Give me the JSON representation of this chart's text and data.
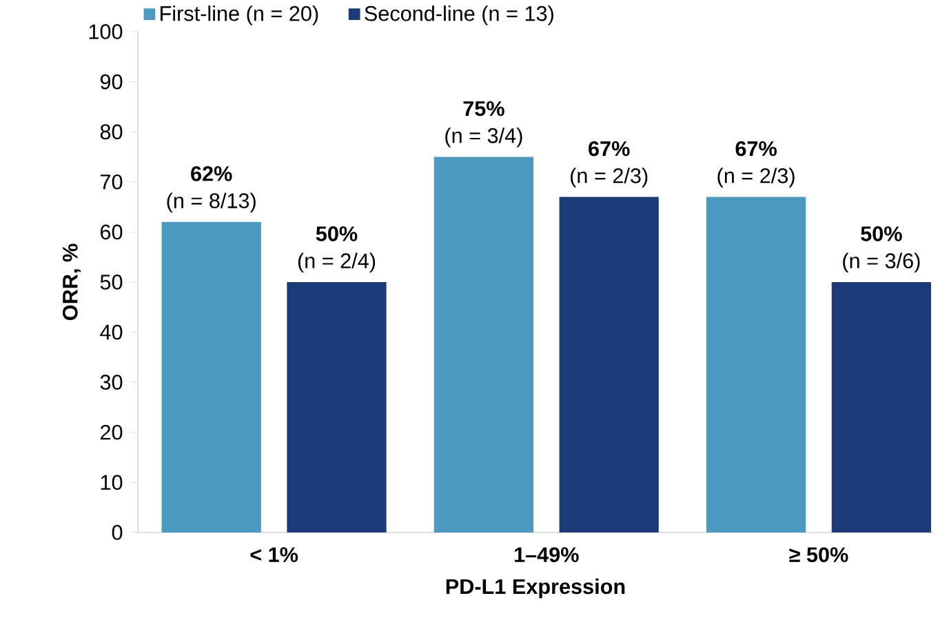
{
  "chart_data": {
    "type": "bar",
    "xlabel": "PD-L1 Expression",
    "ylabel": "ORR, %",
    "categories": [
      "< 1%",
      "1–49%",
      "≥ 50%"
    ],
    "series": [
      {
        "name": "First-line (n = 20)",
        "color": "#4a9bbf",
        "values": [
          62,
          75,
          67
        ],
        "value_labels": [
          "62%",
          "75%",
          "67%"
        ]
      },
      {
        "name": "Second-line (n = 13)",
        "color": "#1b3a78",
        "values": [
          50,
          67,
          50
        ],
        "value_labels": [
          "50%",
          "67%",
          "50%"
        ]
      }
    ],
    "annotations": [
      "(n = 8/13)",
      "(n = 2/4)",
      "(n = 3/4)",
      "(n = 2/3)",
      "(n = 2/3)",
      "(n = 3/6)"
    ],
    "ylim": [
      0,
      100
    ],
    "yticks": [
      0,
      10,
      20,
      30,
      40,
      50,
      60,
      70,
      80,
      90,
      100
    ],
    "grid": false,
    "legend": "top"
  }
}
